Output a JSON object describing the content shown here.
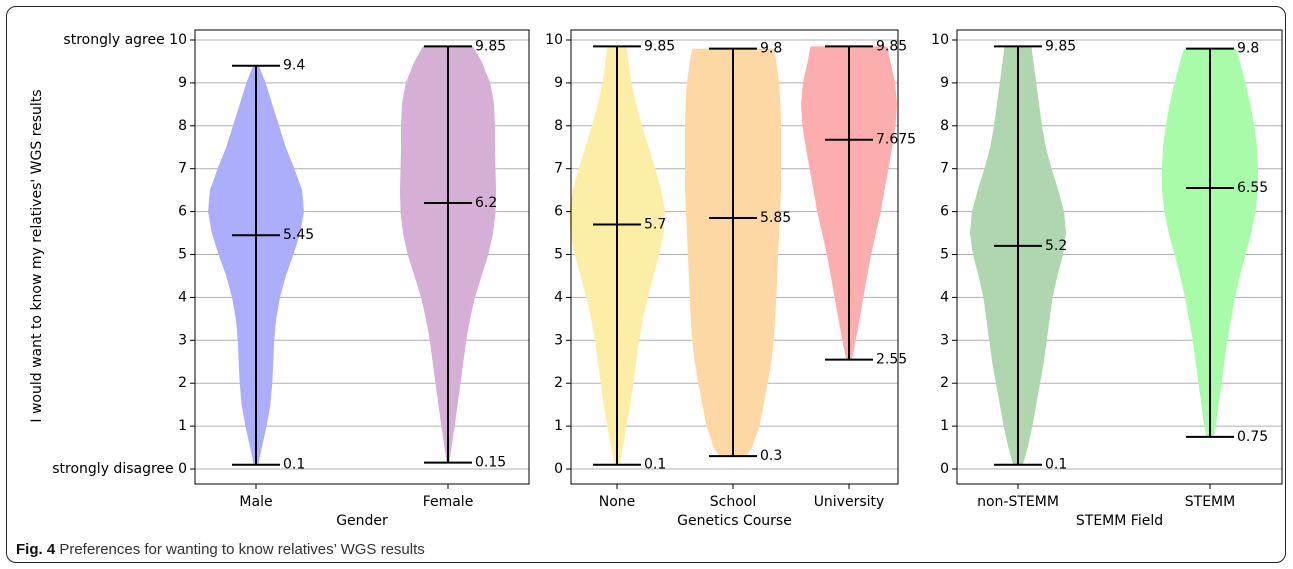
{
  "figure": {
    "caption_label": "Fig. 4",
    "caption_text": "Preferences for wanting to know relatives’ WGS results",
    "ylabel": "I would want to know my relatives' WGS results",
    "ytick_top_label": "strongly agree",
    "ytick_bottom_label": "strongly disagree"
  },
  "chart_data": [
    {
      "type": "violin",
      "xlabel": "Gender",
      "ylabel": "I would want to know my relatives' WGS results",
      "ylim": [
        0,
        10
      ],
      "yticks": [
        0,
        1,
        2,
        3,
        4,
        5,
        6,
        7,
        8,
        9,
        10
      ],
      "grid": "horizontal",
      "categories": [
        "Male",
        "Female"
      ],
      "colors": [
        "#adaefb",
        "#d6afd7"
      ],
      "min": [
        0.1,
        0.15
      ],
      "median": [
        5.45,
        6.2
      ],
      "max": [
        9.4,
        9.85
      ],
      "labels": {
        "min": [
          "0.1",
          "0.15"
        ],
        "median": [
          "5.45",
          "6.2"
        ],
        "max": [
          "9.4",
          "9.85"
        ]
      },
      "density": [
        [
          [
            0.1,
            0.05
          ],
          [
            0.5,
            0.12
          ],
          [
            1,
            0.22
          ],
          [
            1.5,
            0.3
          ],
          [
            2,
            0.34
          ],
          [
            2.5,
            0.36
          ],
          [
            3,
            0.38
          ],
          [
            3.5,
            0.42
          ],
          [
            4,
            0.5
          ],
          [
            4.5,
            0.62
          ],
          [
            5,
            0.78
          ],
          [
            5.5,
            0.92
          ],
          [
            6,
            1.0
          ],
          [
            6.5,
            0.96
          ],
          [
            7,
            0.8
          ],
          [
            7.5,
            0.62
          ],
          [
            8,
            0.48
          ],
          [
            8.5,
            0.34
          ],
          [
            9,
            0.2
          ],
          [
            9.4,
            0.06
          ]
        ],
        [
          [
            0.15,
            0.03
          ],
          [
            0.5,
            0.07
          ],
          [
            1,
            0.14
          ],
          [
            1.5,
            0.2
          ],
          [
            2,
            0.26
          ],
          [
            2.5,
            0.32
          ],
          [
            3,
            0.38
          ],
          [
            3.5,
            0.46
          ],
          [
            4,
            0.56
          ],
          [
            4.5,
            0.7
          ],
          [
            5,
            0.84
          ],
          [
            5.5,
            0.94
          ],
          [
            6,
            0.99
          ],
          [
            6.5,
            1.0
          ],
          [
            7,
            0.99
          ],
          [
            7.5,
            0.98
          ],
          [
            8,
            0.98
          ],
          [
            8.5,
            0.96
          ],
          [
            9,
            0.88
          ],
          [
            9.5,
            0.7
          ],
          [
            9.85,
            0.52
          ]
        ]
      ]
    },
    {
      "type": "violin",
      "xlabel": "Genetics Course",
      "ylabel": "",
      "ylim": [
        0,
        10
      ],
      "yticks": [
        0,
        1,
        2,
        3,
        4,
        5,
        6,
        7,
        8,
        9,
        10
      ],
      "grid": "horizontal",
      "categories": [
        "None",
        "School",
        "University"
      ],
      "colors": [
        "#fdeea6",
        "#fdd8a4",
        "#fcaeae"
      ],
      "min": [
        0.1,
        0.3,
        2.55
      ],
      "median": [
        5.7,
        5.85,
        7.675
      ],
      "max": [
        9.85,
        9.8,
        9.85
      ],
      "labels": {
        "min": [
          "0.1",
          "0.3",
          "2.55"
        ],
        "median": [
          "5.7",
          "5.85",
          "7.675"
        ],
        "max": [
          "9.85",
          "9.8",
          "9.85"
        ]
      },
      "density": [
        [
          [
            0.1,
            0.05
          ],
          [
            0.5,
            0.12
          ],
          [
            1,
            0.2
          ],
          [
            1.5,
            0.28
          ],
          [
            2,
            0.34
          ],
          [
            2.5,
            0.4
          ],
          [
            3,
            0.46
          ],
          [
            3.5,
            0.54
          ],
          [
            4,
            0.64
          ],
          [
            4.5,
            0.76
          ],
          [
            5,
            0.88
          ],
          [
            5.5,
            0.97
          ],
          [
            6,
            1.0
          ],
          [
            6.5,
            0.92
          ],
          [
            7,
            0.8
          ],
          [
            7.5,
            0.66
          ],
          [
            8,
            0.52
          ],
          [
            8.5,
            0.4
          ],
          [
            9,
            0.3
          ],
          [
            9.5,
            0.24
          ],
          [
            9.85,
            0.2
          ]
        ],
        [
          [
            0.3,
            0.28
          ],
          [
            0.5,
            0.4
          ],
          [
            1,
            0.55
          ],
          [
            1.5,
            0.64
          ],
          [
            2,
            0.72
          ],
          [
            2.5,
            0.8
          ],
          [
            3,
            0.85
          ],
          [
            3.5,
            0.88
          ],
          [
            4,
            0.9
          ],
          [
            4.5,
            0.92
          ],
          [
            5,
            0.94
          ],
          [
            5.5,
            0.96
          ],
          [
            6,
            0.98
          ],
          [
            6.5,
            1.0
          ],
          [
            7,
            1.0
          ],
          [
            7.5,
            1.0
          ],
          [
            8,
            1.0
          ],
          [
            8.5,
            0.99
          ],
          [
            9,
            0.96
          ],
          [
            9.5,
            0.9
          ],
          [
            9.8,
            0.85
          ]
        ],
        [
          [
            2.55,
            0.06
          ],
          [
            3,
            0.14
          ],
          [
            3.5,
            0.22
          ],
          [
            4,
            0.3
          ],
          [
            4.5,
            0.38
          ],
          [
            5,
            0.46
          ],
          [
            5.5,
            0.56
          ],
          [
            6,
            0.66
          ],
          [
            6.5,
            0.74
          ],
          [
            7,
            0.82
          ],
          [
            7.5,
            0.9
          ],
          [
            8,
            0.97
          ],
          [
            8.5,
            1.0
          ],
          [
            9,
            0.96
          ],
          [
            9.5,
            0.86
          ],
          [
            9.85,
            0.8
          ]
        ]
      ]
    },
    {
      "type": "violin",
      "xlabel": "STEMM Field",
      "ylabel": "",
      "ylim": [
        0,
        10
      ],
      "yticks": [
        0,
        1,
        2,
        3,
        4,
        5,
        6,
        7,
        8,
        9,
        10
      ],
      "grid": "horizontal",
      "categories": [
        "non-STEMM",
        "STEMM"
      ],
      "colors": [
        "#b0d6b0",
        "#a8fba8"
      ],
      "min": [
        0.1,
        0.75
      ],
      "median": [
        5.2,
        6.55
      ],
      "max": [
        9.85,
        9.8
      ],
      "labels": {
        "min": [
          "0.1",
          "0.75"
        ],
        "median": [
          "5.2",
          "6.55"
        ],
        "max": [
          "9.85",
          "9.8"
        ]
      },
      "density": [
        [
          [
            0.1,
            0.1
          ],
          [
            0.5,
            0.2
          ],
          [
            1,
            0.3
          ],
          [
            1.5,
            0.38
          ],
          [
            2,
            0.46
          ],
          [
            2.5,
            0.54
          ],
          [
            3,
            0.6
          ],
          [
            3.5,
            0.66
          ],
          [
            4,
            0.72
          ],
          [
            4.5,
            0.82
          ],
          [
            5,
            0.94
          ],
          [
            5.5,
            1.0
          ],
          [
            6,
            0.96
          ],
          [
            6.5,
            0.84
          ],
          [
            7,
            0.7
          ],
          [
            7.5,
            0.58
          ],
          [
            8,
            0.5
          ],
          [
            8.5,
            0.44
          ],
          [
            9,
            0.38
          ],
          [
            9.5,
            0.32
          ],
          [
            9.85,
            0.28
          ]
        ],
        [
          [
            0.75,
            0.08
          ],
          [
            1,
            0.12
          ],
          [
            1.5,
            0.18
          ],
          [
            2,
            0.24
          ],
          [
            2.5,
            0.3
          ],
          [
            3,
            0.36
          ],
          [
            3.5,
            0.44
          ],
          [
            4,
            0.52
          ],
          [
            4.5,
            0.62
          ],
          [
            5,
            0.74
          ],
          [
            5.5,
            0.86
          ],
          [
            6,
            0.95
          ],
          [
            6.5,
            1.0
          ],
          [
            7,
            1.0
          ],
          [
            7.5,
            0.98
          ],
          [
            8,
            0.92
          ],
          [
            8.5,
            0.84
          ],
          [
            9,
            0.74
          ],
          [
            9.5,
            0.62
          ],
          [
            9.8,
            0.54
          ]
        ]
      ]
    }
  ]
}
